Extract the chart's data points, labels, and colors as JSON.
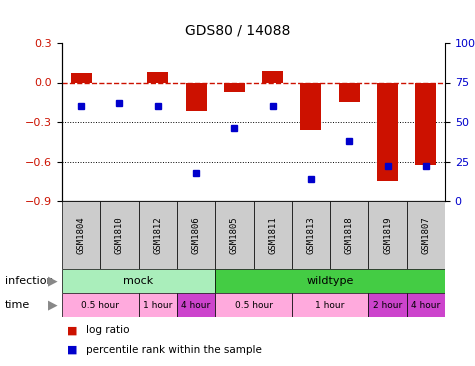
{
  "title": "GDS80 / 14088",
  "samples": [
    "GSM1804",
    "GSM1810",
    "GSM1812",
    "GSM1806",
    "GSM1805",
    "GSM1811",
    "GSM1813",
    "GSM1818",
    "GSM1819",
    "GSM1807"
  ],
  "log_ratios": [
    0.07,
    0.0,
    0.08,
    -0.22,
    -0.07,
    0.09,
    -0.36,
    -0.15,
    -0.75,
    -0.63
  ],
  "percentiles": [
    60,
    62,
    60,
    18,
    46,
    60,
    14,
    38,
    22,
    22
  ],
  "ylim_left": [
    -0.9,
    0.3
  ],
  "ylim_right": [
    0,
    100
  ],
  "bar_color": "#cc1100",
  "dot_color": "#0000cc",
  "mock_color": "#aaeebb",
  "wild_color": "#44cc44",
  "time_light_color": "#ffaadd",
  "time_dark_color": "#cc44cc",
  "label_bg_color": "#cccccc",
  "bg_color": "#ffffff",
  "time_groups": [
    {
      "label": "0.5 hour",
      "start": 0,
      "end": 2,
      "dark": false
    },
    {
      "label": "1 hour",
      "start": 2,
      "end": 3,
      "dark": false
    },
    {
      "label": "4 hour",
      "start": 3,
      "end": 4,
      "dark": true
    },
    {
      "label": "0.5 hour",
      "start": 4,
      "end": 6,
      "dark": false
    },
    {
      "label": "1 hour",
      "start": 6,
      "end": 8,
      "dark": false
    },
    {
      "label": "2 hour",
      "start": 8,
      "end": 9,
      "dark": true
    },
    {
      "label": "4 hour",
      "start": 9,
      "end": 10,
      "dark": true
    }
  ]
}
